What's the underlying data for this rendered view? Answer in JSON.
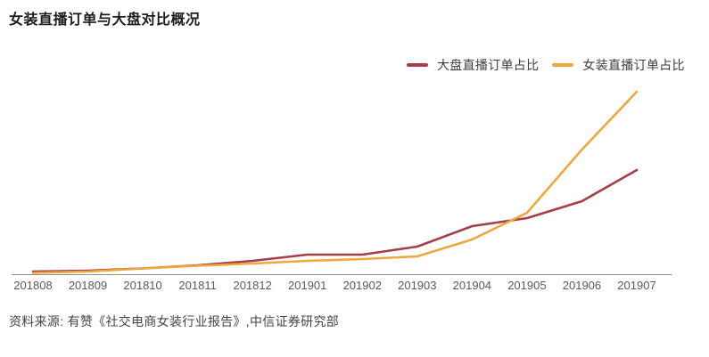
{
  "page": {
    "title": "女装直播订单与大盘对比概况",
    "source_note": "资料来源: 有赞《社交电商女装行业报告》,中信证券研究部"
  },
  "chart_data": {
    "type": "line",
    "title": "女装直播订单与大盘对比概况",
    "categories": [
      "201808",
      "201809",
      "201810",
      "201811",
      "201812",
      "201901",
      "201902",
      "201903",
      "201904",
      "201905",
      "201906",
      "201907"
    ],
    "series": [
      {
        "name": "大盘直播订单占比",
        "color": "#A63D4A",
        "values": [
          3,
          4,
          6.5,
          10,
          15,
          22,
          22,
          31,
          54,
          63,
          82,
          117
        ]
      },
      {
        "name": "女装直播订单占比",
        "color": "#ECA83F",
        "values": [
          1.5,
          3,
          6.5,
          9.5,
          12,
          15,
          17,
          20,
          39,
          69,
          140,
          205
        ]
      }
    ],
    "unit": "relative share — chart displays no y-axis or value labels; values estimated from line heights",
    "ylim": [
      0,
      210
    ],
    "grid": false,
    "y_axis_shown": false,
    "x_axis_shown": true,
    "legend_position": "top-right",
    "axis_color": "#8f8f8f",
    "source": "资料来源: 有赞《社交电商女装行业报告》,中信证券研究部"
  }
}
